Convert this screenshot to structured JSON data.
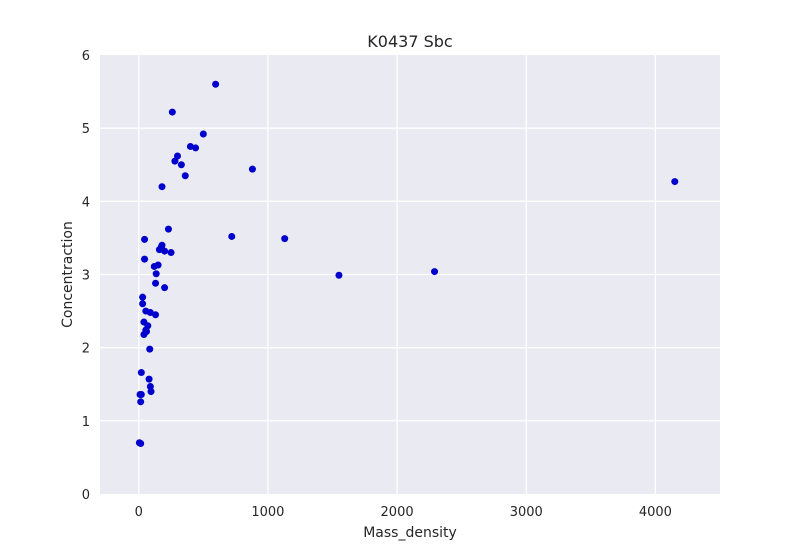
{
  "chart_data": {
    "type": "scatter",
    "title": "K0437 Sbc",
    "xlabel": "Mass_density",
    "ylabel": "Concentraction",
    "xlim": [
      -300,
      4500
    ],
    "ylim": [
      0,
      6
    ],
    "xticks": [
      0,
      1000,
      2000,
      3000,
      4000
    ],
    "yticks": [
      0,
      1,
      2,
      3,
      4,
      5,
      6
    ],
    "grid": true,
    "legend": "none",
    "colors": {
      "background": "#eaeaf2",
      "grid": "#ffffff",
      "point": "#0000cc",
      "text": "#262626"
    },
    "series": [
      {
        "x": [
          595,
          260,
          500,
          300,
          280,
          400,
          440,
          330,
          360,
          180,
          880,
          4150,
          720,
          1130,
          230,
          45,
          180,
          160,
          175,
          200,
          250,
          45,
          120,
          150,
          135,
          1550,
          2290,
          130,
          200,
          30,
          30,
          90,
          130,
          40,
          70,
          55,
          60,
          40,
          85,
          20,
          80,
          90,
          95,
          10,
          20,
          15,
          5,
          15,
          55
        ],
        "y": [
          5.6,
          5.22,
          4.92,
          4.62,
          4.55,
          4.75,
          4.73,
          4.5,
          4.35,
          4.2,
          4.44,
          4.27,
          3.52,
          3.49,
          3.62,
          3.48,
          3.4,
          3.34,
          3.38,
          3.32,
          3.3,
          3.21,
          3.11,
          3.13,
          3.01,
          2.99,
          3.04,
          2.88,
          2.82,
          2.69,
          2.6,
          2.48,
          2.45,
          2.35,
          2.3,
          2.24,
          2.22,
          2.18,
          1.98,
          1.66,
          1.57,
          1.47,
          1.4,
          1.36,
          1.36,
          1.26,
          0.7,
          0.69,
          2.5
        ]
      }
    ]
  }
}
